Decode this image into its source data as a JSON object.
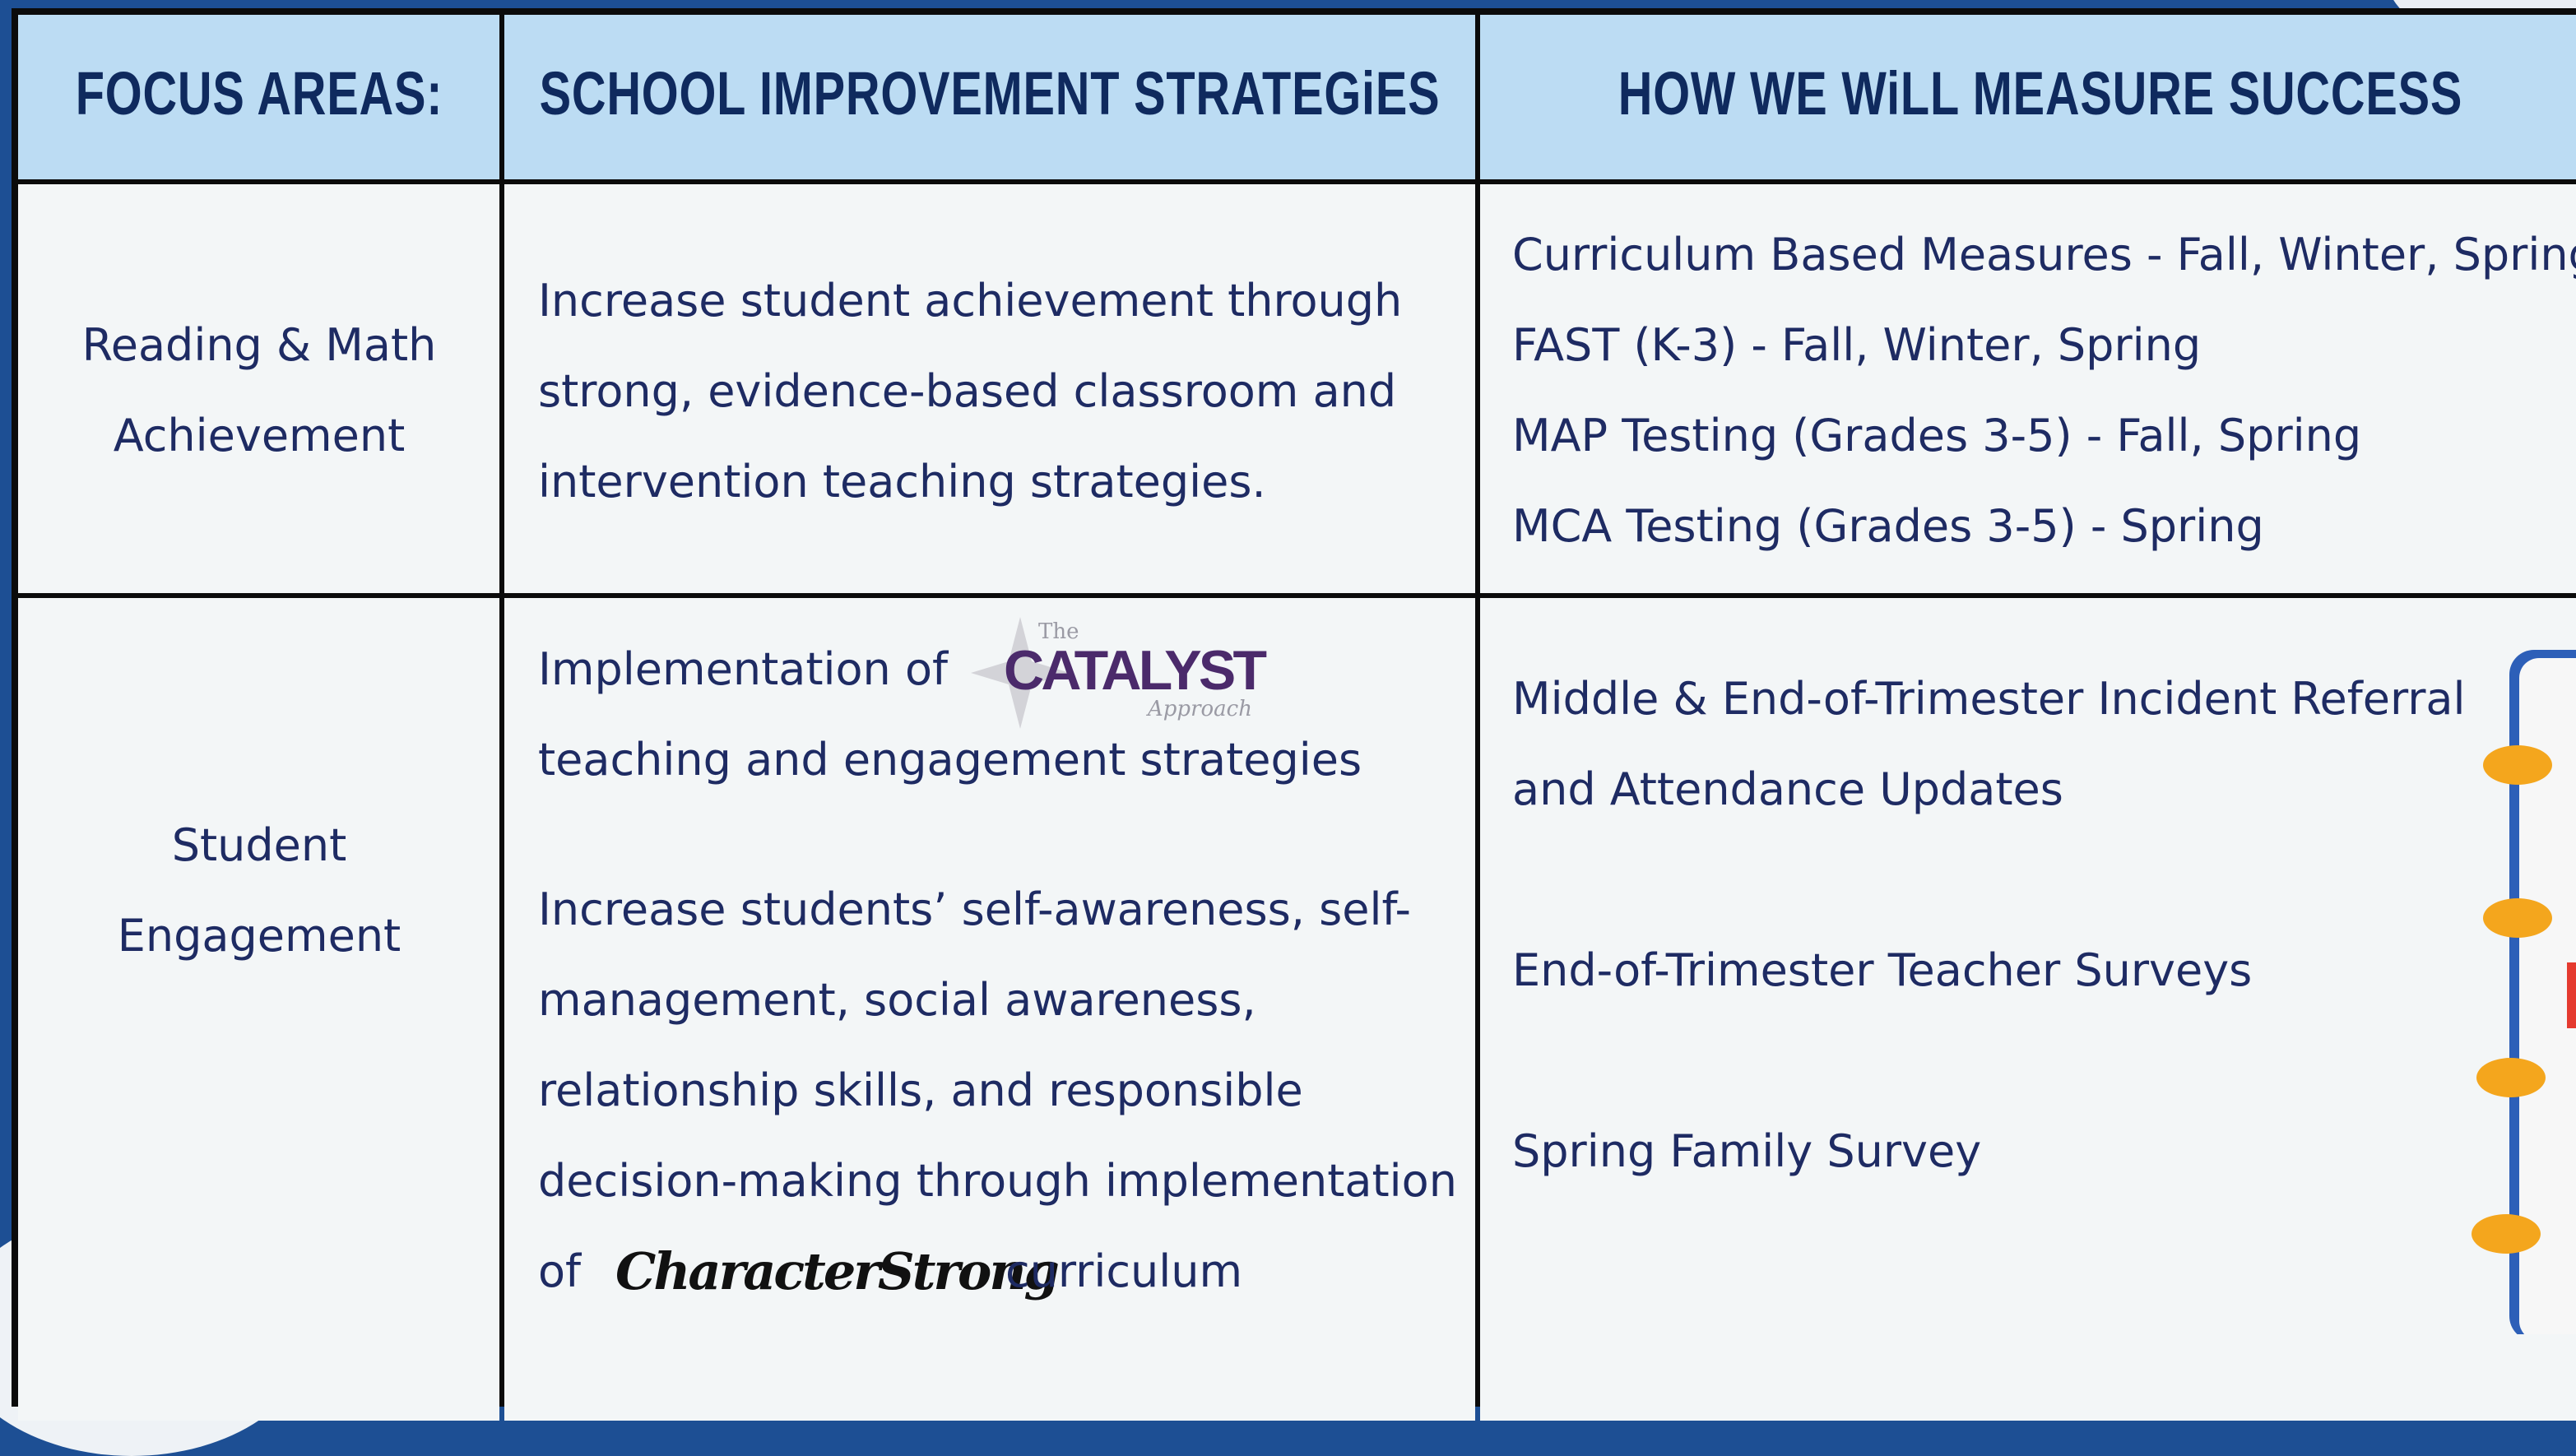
{
  "table": {
    "headers": [
      "FOCUS AREAS:",
      "SCHOOL IMPROVEMENT STRATEGiES",
      "HOW WE WiLL MEASURE SUCCESS"
    ],
    "rows": [
      {
        "focus": [
          "Reading & Math",
          "Achievement"
        ],
        "strategies": [
          "Increase student achievement through",
          "strong, evidence-based classroom and",
          "intervention teaching strategies."
        ],
        "measures": [
          "Curriculum Based Measures - Fall, Winter, Spring",
          "FAST (K-3)  - Fall, Winter, Spring",
          "MAP Testing (Grades 3-5) - Fall, Spring",
          "MCA Testing (Grades 3-5) - Spring"
        ]
      },
      {
        "focus": [
          "Student",
          "Engagement"
        ],
        "strategies": {
          "catalyst": {
            "before": "Implementation of",
            "logo": {
              "small": "The",
              "name": "CATALYST",
              "sub": "Approach"
            },
            "after": "teaching and engagement strategies"
          },
          "sel": {
            "lines": [
              "Increase students’ self-awareness, self-",
              "management, social awareness,",
              "relationship skills, and responsible",
              "decision-making through implementation"
            ],
            "before": "of",
            "logo": "CharacterStrong",
            "after": "curriculum"
          }
        },
        "measures": [
          [
            "Middle & End-of-Trimester Incident Referral",
            "and  Attendance Updates"
          ],
          [
            "End-of-Trimester Teacher Surveys"
          ],
          [
            "Spring Family Survey"
          ]
        ]
      }
    ]
  }
}
